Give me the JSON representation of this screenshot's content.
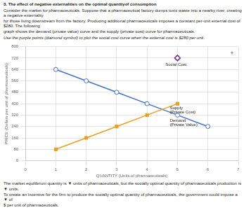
{
  "chart_data": {
    "type": "line",
    "title": "3. The effect of negative externalities on the optimal quantityof consumption",
    "subtitle": [
      "Consider the market for pharmaceuticals. Suppose that a pharmaceutical factory dumps toxic waste into a nearby river, creating a negative externality",
      "for those living downstream from the factory. Producing additional pharmaceuticals imposes a constant per-unit external cost of $280. The following",
      "graph shows the demand (private value) curve and the supply (private cost) curve for pharmaceuticals.",
      "Use the purple points (diamond symbol) to plot the social cost curve when the external cost is $280 per unit."
    ],
    "footer": [
      [
        "The market equilibrium quantity is",
        "▼",
        "units of pharmaceuticals, but the socially optimal quantity of pharmaceuticals production is"
      ],
      [
        "▼",
        "units."
      ],
      [
        "To create an incentive for the firm to produce the socially optimal quantity of pharmaceuticals, the government could impose a",
        "▼",
        "of"
      ],
      [
        "$",
        "per unit of pharmaceuticals."
      ]
    ],
    "xlabel": "QUANTITY (Units of pharmaceuticals)",
    "ylabel": "PRICE (Dollars per unit of pharmaceuticals)",
    "series": [
      {
        "x": [
          1,
          2,
          3,
          4,
          5
        ],
        "values": [
          80,
          160,
          240,
          320,
          400
        ],
        "color": "#E8A020",
        "marker": "square",
        "line_style": "solid"
      },
      {
        "x": [
          1,
          2,
          3,
          4,
          5,
          6
        ],
        "values": [
          640,
          560,
          480,
          400,
          320,
          240
        ],
        "color": "#4472C4",
        "marker": "circle",
        "line_style": "solid"
      },
      {
        "x": [
          5
        ],
        "values": [
          720
        ],
        "color": "#7030A0",
        "marker": "diamond",
        "line_style": "none"
      }
    ],
    "annotations": [
      {
        "text": "Supply",
        "x": 4.75,
        "y": 385
      },
      {
        "text": "(Private Cost)",
        "x": 4.75,
        "y": 355
      },
      {
        "text": "Demand",
        "x": 4.75,
        "y": 295
      },
      {
        "text": "(Private Value)",
        "x": 4.75,
        "y": 265
      },
      {
        "text": "Social Cost",
        "x": 4.6,
        "y": 690
      },
      {
        "text": "?",
        "x": 6.75,
        "y": 765
      }
    ],
    "xlim": [
      0,
      7
    ],
    "ylim": [
      0,
      800
    ],
    "xticks": [
      0,
      1,
      2,
      3,
      4,
      5,
      6,
      7
    ],
    "yticks": [
      0,
      80,
      160,
      240,
      320,
      400,
      480,
      560,
      640,
      720,
      800
    ],
    "grid": true
  }
}
